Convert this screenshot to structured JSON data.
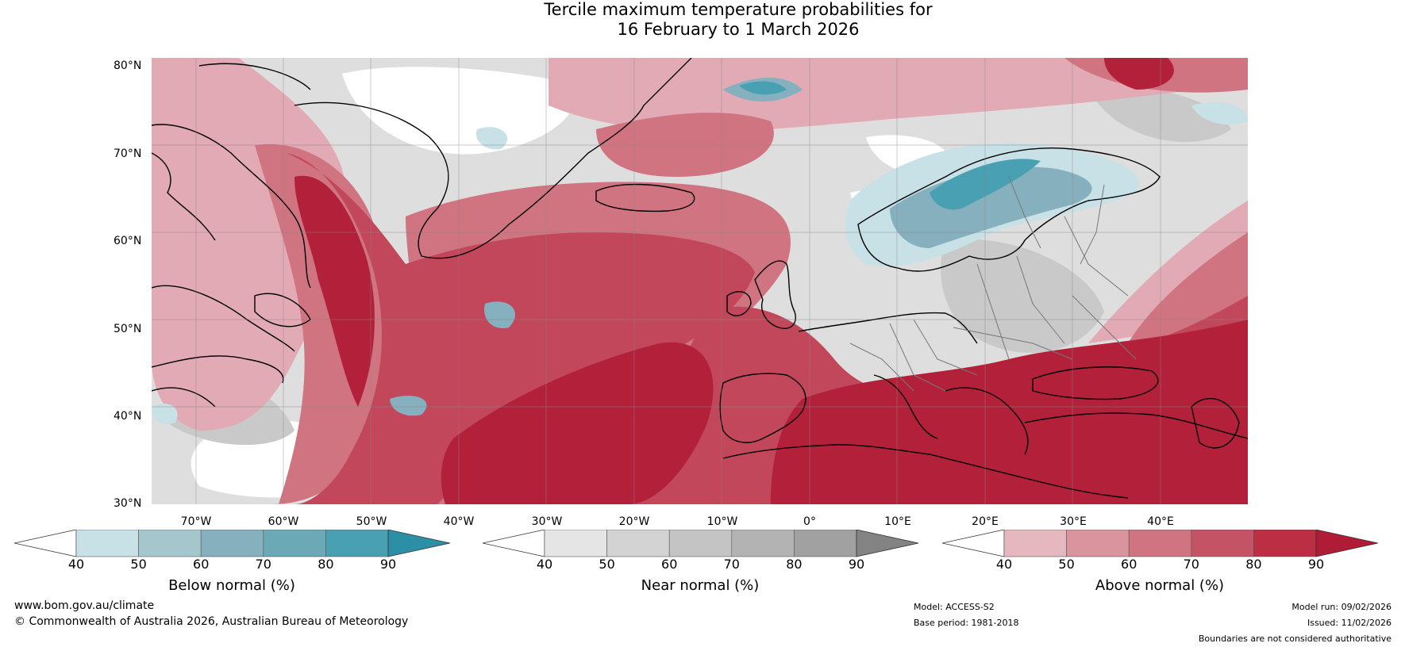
{
  "title": {
    "line1": "Tercile maximum temperature probabilities for",
    "line2": "16 February to 1 March 2026"
  },
  "map": {
    "lat_labels": [
      "80°N",
      "70°N",
      "60°N",
      "50°N",
      "40°N",
      "30°N"
    ],
    "lon_labels": [
      "70°W",
      "60°W",
      "50°W",
      "40°W",
      "30°W",
      "20°W",
      "10°W",
      "0°",
      "10°E",
      "20°E",
      "30°E",
      "40°E"
    ]
  },
  "colorbars": [
    {
      "title": "Below normal (%)",
      "ticks": [
        "40",
        "50",
        "60",
        "70",
        "80",
        "90"
      ],
      "colors": [
        "#c7e1e6",
        "#a5c6cd",
        "#86b0bd",
        "#6aa9b5",
        "#48a0b2"
      ],
      "low_color": "#ffffff",
      "high_color": "#2d8fa6"
    },
    {
      "title": "Near normal (%)",
      "ticks": [
        "40",
        "50",
        "60",
        "70",
        "80",
        "90"
      ],
      "colors": [
        "#e5e5e5",
        "#d3d3d3",
        "#c4c4c4",
        "#b3b3b3",
        "#a1a1a1"
      ],
      "low_color": "#ffffff",
      "high_color": "#838383"
    },
    {
      "title": "Above normal (%)",
      "ticks": [
        "40",
        "50",
        "60",
        "70",
        "80",
        "90"
      ],
      "colors": [
        "#e5b7bf",
        "#d9949e",
        "#cf7480",
        "#c45465",
        "#bb2e43"
      ],
      "low_color": "#ffffff",
      "high_color": "#b01c36"
    }
  ],
  "footer": {
    "url": "www.bom.gov.au/climate",
    "copyright": "© Commonwealth of Australia 2026, Australian Bureau of Meteorology",
    "model": "Model: ACCESS-S2",
    "base_period": "Base period: 1981-2018",
    "model_run": "Model run: 09/02/2026",
    "issued": "Issued: 11/02/2026",
    "disclaimer": "Boundaries are not considered authoritative"
  },
  "palette": {
    "land_outline": "#000000",
    "border": "#777777",
    "grid": "#888888",
    "ocean_warm": "#c74358",
    "ocean_deep": "#b01f39"
  }
}
